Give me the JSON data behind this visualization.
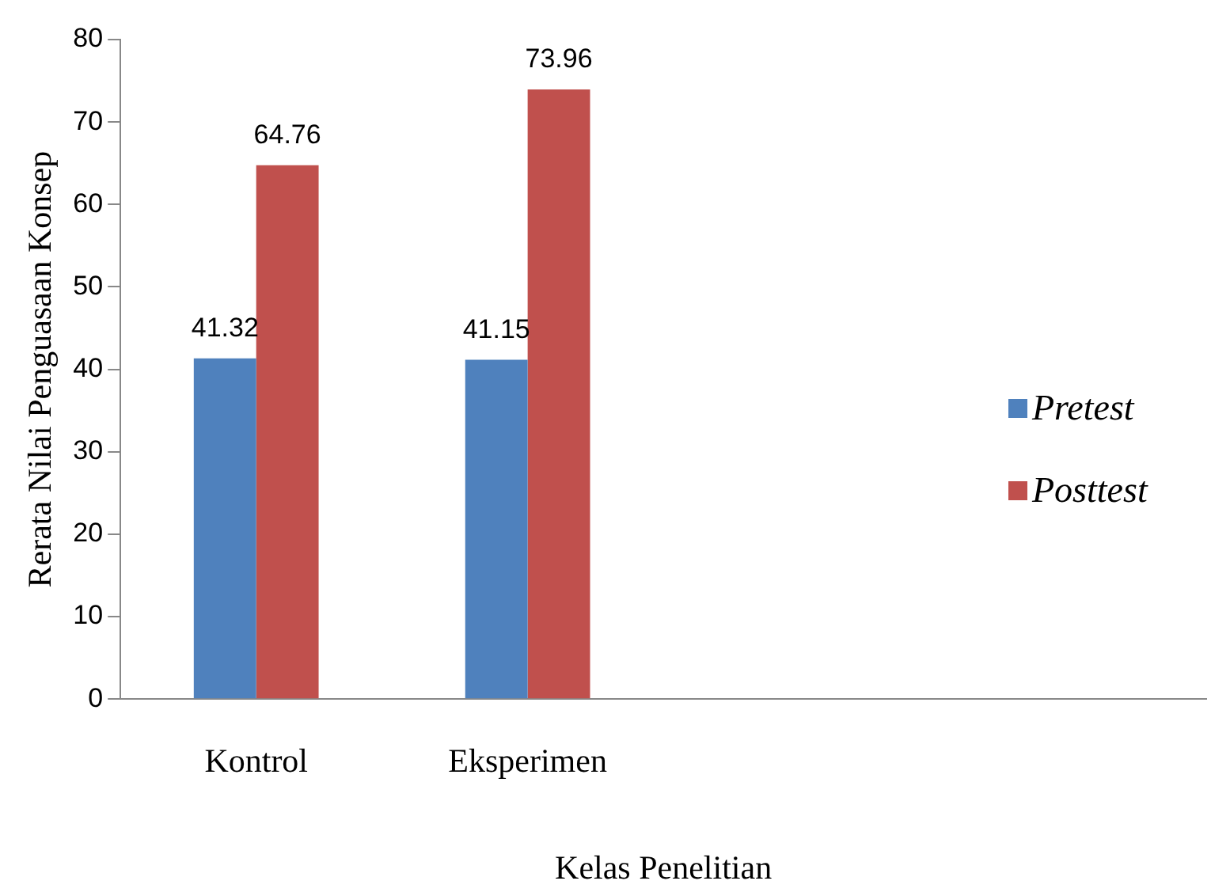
{
  "chart_data": {
    "type": "bar",
    "xlabel": "Kelas Penelitian",
    "ylabel": "Rerata Nilai Penguasaan Konsep",
    "categories": [
      "Kontrol",
      "Eksperimen",
      null,
      null
    ],
    "series": [
      {
        "name": "Pretest",
        "color": "#4f81bd",
        "values": [
          41.32,
          41.15,
          null,
          null
        ]
      },
      {
        "name": "Posttest",
        "color": "#c0504d",
        "values": [
          64.76,
          73.96,
          null,
          null
        ]
      }
    ],
    "ylim": [
      0,
      80
    ],
    "yticks": [
      0,
      10,
      20,
      30,
      40,
      50,
      60,
      70,
      80
    ],
    "grid": false,
    "legend": "right",
    "data_labels": true
  }
}
